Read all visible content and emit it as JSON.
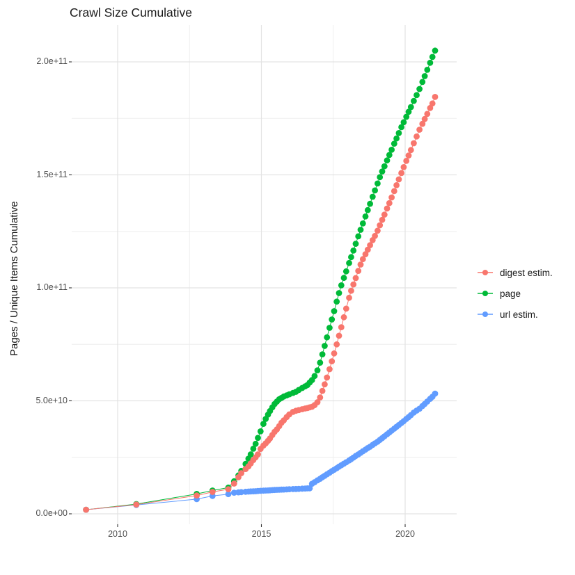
{
  "chart_data": {
    "type": "scatter",
    "title": "Crawl Size Cumulative",
    "xlabel": "",
    "ylabel": "Pages / Unique Items Cumulative",
    "legend_position": "right",
    "grid": "on",
    "value_scale_note": "series point values are in units of 1e9 (billions)",
    "xlim": [
      2008.4,
      2021.8
    ],
    "ylim_e9": [
      -4,
      216
    ],
    "x_ticks": [
      {
        "value": 2010,
        "label": "2010"
      },
      {
        "value": 2015,
        "label": "2015"
      },
      {
        "value": 2020,
        "label": "2020"
      }
    ],
    "x_minor_ticks": [
      2012.5,
      2017.5
    ],
    "y_ticks": [
      {
        "value_e9": 0,
        "label": "0.0e+00"
      },
      {
        "value_e9": 50,
        "label": "5.0e+10"
      },
      {
        "value_e9": 100,
        "label": "1.0e+11"
      },
      {
        "value_e9": 150,
        "label": "1.5e+11"
      },
      {
        "value_e9": 200,
        "label": "2.0e+11"
      }
    ],
    "y_minor_ticks_e9": [
      25,
      75,
      125,
      175
    ],
    "series": [
      {
        "name": "digest estim.",
        "color": "#F8766D",
        "points": [
          [
            2008.9,
            1.8
          ],
          [
            2010.65,
            4.1
          ],
          [
            2012.75,
            8.1
          ],
          [
            2013.3,
            9.7
          ],
          [
            2013.85,
            10.9
          ],
          [
            2014.05,
            13.4
          ],
          [
            2014.2,
            16.2
          ],
          [
            2014.3,
            18
          ],
          [
            2014.45,
            19.8
          ],
          [
            2014.55,
            21
          ],
          [
            2014.63,
            22.3
          ],
          [
            2014.72,
            23.8
          ],
          [
            2014.8,
            25
          ],
          [
            2014.88,
            26.3
          ],
          [
            2014.97,
            28.7
          ],
          [
            2015.07,
            30.2
          ],
          [
            2015.15,
            31.2
          ],
          [
            2015.23,
            32.3
          ],
          [
            2015.3,
            33.4
          ],
          [
            2015.38,
            34.9
          ],
          [
            2015.46,
            36.3
          ],
          [
            2015.54,
            37.4
          ],
          [
            2015.62,
            38.8
          ],
          [
            2015.7,
            40.3
          ],
          [
            2015.78,
            41.4
          ],
          [
            2015.88,
            42.8
          ],
          [
            2015.97,
            44
          ],
          [
            2016.1,
            45.1
          ],
          [
            2016.2,
            45.6
          ],
          [
            2016.3,
            45.9
          ],
          [
            2016.42,
            46.3
          ],
          [
            2016.52,
            46.6
          ],
          [
            2016.6,
            46.8
          ],
          [
            2016.68,
            47.1
          ],
          [
            2016.76,
            47.4
          ],
          [
            2016.85,
            48.1
          ],
          [
            2016.95,
            49.4
          ],
          [
            2017.04,
            51.5
          ],
          [
            2017.12,
            54.4
          ],
          [
            2017.2,
            57.3
          ],
          [
            2017.28,
            60.3
          ],
          [
            2017.37,
            64
          ],
          [
            2017.45,
            67.5
          ],
          [
            2017.53,
            71
          ],
          [
            2017.62,
            75
          ],
          [
            2017.7,
            78.8
          ],
          [
            2017.78,
            82.6
          ],
          [
            2017.87,
            87
          ],
          [
            2017.95,
            90.8
          ],
          [
            2018.05,
            95.6
          ],
          [
            2018.12,
            98.7
          ],
          [
            2018.2,
            101.5
          ],
          [
            2018.28,
            104.3
          ],
          [
            2018.37,
            107.5
          ],
          [
            2018.45,
            110.3
          ],
          [
            2018.53,
            112.7
          ],
          [
            2018.62,
            114.9
          ],
          [
            2018.7,
            116.9
          ],
          [
            2018.78,
            118.9
          ],
          [
            2018.87,
            121.1
          ],
          [
            2018.95,
            123
          ],
          [
            2019.04,
            125.3
          ],
          [
            2019.12,
            127.7
          ],
          [
            2019.2,
            130.1
          ],
          [
            2019.28,
            132.4
          ],
          [
            2019.37,
            135.1
          ],
          [
            2019.45,
            137.5
          ],
          [
            2019.53,
            140
          ],
          [
            2019.62,
            142.8
          ],
          [
            2019.7,
            145.4
          ],
          [
            2019.78,
            148
          ],
          [
            2019.87,
            150.8
          ],
          [
            2019.95,
            153.4
          ],
          [
            2020.04,
            156.2
          ],
          [
            2020.12,
            158.6
          ],
          [
            2020.2,
            161
          ],
          [
            2020.3,
            164
          ],
          [
            2020.4,
            167
          ],
          [
            2020.5,
            170
          ],
          [
            2020.6,
            172.6
          ],
          [
            2020.68,
            174.7
          ],
          [
            2020.77,
            177
          ],
          [
            2020.87,
            179.6
          ],
          [
            2020.95,
            181.6
          ],
          [
            2021.04,
            184.5
          ]
        ]
      },
      {
        "name": "page",
        "color": "#00BA38",
        "points": [
          [
            2008.9,
            1.8
          ],
          [
            2010.65,
            4.3
          ],
          [
            2012.75,
            8.8
          ],
          [
            2013.3,
            10.3
          ],
          [
            2013.85,
            11.6
          ],
          [
            2014.05,
            14.4
          ],
          [
            2014.2,
            17
          ],
          [
            2014.3,
            19
          ],
          [
            2014.45,
            22.1
          ],
          [
            2014.55,
            24.4
          ],
          [
            2014.63,
            26.3
          ],
          [
            2014.72,
            28.8
          ],
          [
            2014.8,
            31
          ],
          [
            2014.88,
            33.6
          ],
          [
            2014.97,
            36.5
          ],
          [
            2015.07,
            39.8
          ],
          [
            2015.15,
            42
          ],
          [
            2015.23,
            43.9
          ],
          [
            2015.3,
            45.5
          ],
          [
            2015.38,
            47.1
          ],
          [
            2015.46,
            48.6
          ],
          [
            2015.54,
            49.7
          ],
          [
            2015.62,
            50.7
          ],
          [
            2015.7,
            51.3
          ],
          [
            2015.78,
            51.9
          ],
          [
            2015.88,
            52.4
          ],
          [
            2015.97,
            52.9
          ],
          [
            2016.1,
            53.5
          ],
          [
            2016.2,
            54
          ],
          [
            2016.3,
            54.8
          ],
          [
            2016.42,
            55.7
          ],
          [
            2016.52,
            56.4
          ],
          [
            2016.6,
            57
          ],
          [
            2016.68,
            58.1
          ],
          [
            2016.76,
            59.2
          ],
          [
            2016.85,
            61
          ],
          [
            2016.95,
            63.5
          ],
          [
            2017.04,
            66.9
          ],
          [
            2017.12,
            70.6
          ],
          [
            2017.2,
            74.3
          ],
          [
            2017.28,
            78.1
          ],
          [
            2017.37,
            82.3
          ],
          [
            2017.45,
            86
          ],
          [
            2017.53,
            89.7
          ],
          [
            2017.62,
            93.9
          ],
          [
            2017.7,
            97.7
          ],
          [
            2017.78,
            101.1
          ],
          [
            2017.87,
            104.4
          ],
          [
            2017.95,
            107.3
          ],
          [
            2018.05,
            111
          ],
          [
            2018.12,
            113.6
          ],
          [
            2018.2,
            116.5
          ],
          [
            2018.28,
            119.5
          ],
          [
            2018.37,
            122.8
          ],
          [
            2018.45,
            125.7
          ],
          [
            2018.53,
            128.5
          ],
          [
            2018.62,
            131.6
          ],
          [
            2018.7,
            134.4
          ],
          [
            2018.78,
            137.2
          ],
          [
            2018.87,
            140.3
          ],
          [
            2018.95,
            143.1
          ],
          [
            2019.04,
            146.2
          ],
          [
            2019.12,
            149
          ],
          [
            2019.2,
            151.5
          ],
          [
            2019.28,
            153.8
          ],
          [
            2019.37,
            156.4
          ],
          [
            2019.45,
            158.8
          ],
          [
            2019.53,
            161.1
          ],
          [
            2019.62,
            163.8
          ],
          [
            2019.7,
            166.1
          ],
          [
            2019.78,
            168.5
          ],
          [
            2019.87,
            171.1
          ],
          [
            2019.95,
            173.3
          ],
          [
            2020.04,
            175.7
          ],
          [
            2020.12,
            177.9
          ],
          [
            2020.2,
            180
          ],
          [
            2020.3,
            182.7
          ],
          [
            2020.4,
            185.3
          ],
          [
            2020.5,
            188
          ],
          [
            2020.6,
            191.1
          ],
          [
            2020.68,
            193.7
          ],
          [
            2020.77,
            196.5
          ],
          [
            2020.87,
            199.6
          ],
          [
            2020.95,
            202.2
          ],
          [
            2021.04,
            205
          ]
        ]
      },
      {
        "name": "url estim.",
        "color": "#619CFF",
        "points": [
          [
            2008.9,
            1.8
          ],
          [
            2010.65,
            3.9
          ],
          [
            2012.75,
            6.5
          ],
          [
            2013.3,
            7.9
          ],
          [
            2013.85,
            8.7
          ],
          [
            2014.05,
            9.35
          ],
          [
            2014.2,
            9.5
          ],
          [
            2014.3,
            9.6
          ],
          [
            2014.45,
            9.75
          ],
          [
            2014.55,
            9.85
          ],
          [
            2014.63,
            9.9
          ],
          [
            2014.72,
            9.95
          ],
          [
            2014.8,
            10
          ],
          [
            2014.88,
            10.1
          ],
          [
            2014.97,
            10.2
          ],
          [
            2015.07,
            10.25
          ],
          [
            2015.15,
            10.3
          ],
          [
            2015.23,
            10.35
          ],
          [
            2015.3,
            10.4
          ],
          [
            2015.38,
            10.5
          ],
          [
            2015.46,
            10.55
          ],
          [
            2015.54,
            10.6
          ],
          [
            2015.62,
            10.65
          ],
          [
            2015.7,
            10.7
          ],
          [
            2015.78,
            10.75
          ],
          [
            2015.88,
            10.8
          ],
          [
            2015.97,
            10.9
          ],
          [
            2016.1,
            10.95
          ],
          [
            2016.2,
            11
          ],
          [
            2016.3,
            11.05
          ],
          [
            2016.42,
            11.15
          ],
          [
            2016.52,
            11.2
          ],
          [
            2016.6,
            11.25
          ],
          [
            2016.68,
            11.3
          ],
          [
            2016.76,
            13.3
          ],
          [
            2016.85,
            14
          ],
          [
            2016.95,
            14.8
          ],
          [
            2017.04,
            15.5
          ],
          [
            2017.12,
            16.2
          ],
          [
            2017.2,
            16.8
          ],
          [
            2017.28,
            17.5
          ],
          [
            2017.37,
            18.2
          ],
          [
            2017.45,
            18.9
          ],
          [
            2017.53,
            19.5
          ],
          [
            2017.62,
            20.2
          ],
          [
            2017.7,
            20.9
          ],
          [
            2017.78,
            21.5
          ],
          [
            2017.87,
            22.2
          ],
          [
            2017.95,
            22.8
          ],
          [
            2018.05,
            23.6
          ],
          [
            2018.12,
            24.2
          ],
          [
            2018.2,
            24.9
          ],
          [
            2018.28,
            25.6
          ],
          [
            2018.37,
            26.3
          ],
          [
            2018.45,
            27
          ],
          [
            2018.53,
            27.7
          ],
          [
            2018.62,
            28.4
          ],
          [
            2018.7,
            29.1
          ],
          [
            2018.78,
            29.7
          ],
          [
            2018.87,
            30.5
          ],
          [
            2018.95,
            31.2
          ],
          [
            2019.04,
            31.9
          ],
          [
            2019.12,
            32.7
          ],
          [
            2019.2,
            33.5
          ],
          [
            2019.28,
            34.3
          ],
          [
            2019.37,
            35.2
          ],
          [
            2019.45,
            36
          ],
          [
            2019.53,
            36.8
          ],
          [
            2019.62,
            37.7
          ],
          [
            2019.7,
            38.5
          ],
          [
            2019.78,
            39.3
          ],
          [
            2019.87,
            40.2
          ],
          [
            2019.95,
            41
          ],
          [
            2020.04,
            42
          ],
          [
            2020.12,
            42.8
          ],
          [
            2020.2,
            43.7
          ],
          [
            2020.3,
            44.8
          ],
          [
            2020.4,
            45.7
          ],
          [
            2020.5,
            46.5
          ],
          [
            2020.6,
            47.7
          ],
          [
            2020.68,
            48.6
          ],
          [
            2020.77,
            49.7
          ],
          [
            2020.87,
            50.9
          ],
          [
            2020.95,
            51.8
          ],
          [
            2021.04,
            53.2
          ]
        ]
      }
    ]
  }
}
